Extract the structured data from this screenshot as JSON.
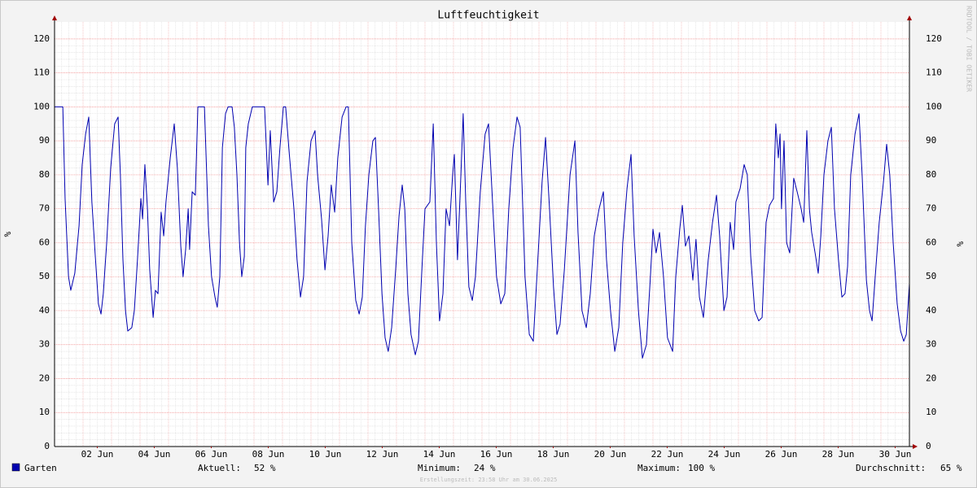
{
  "chart_data": {
    "type": "line",
    "title": "Luftfeuchtigkeit",
    "ylabel": "%",
    "watermark": "RRDTOOL / TOBI OETIKER",
    "xlim": [
      0,
      30
    ],
    "xticks": [
      {
        "value": 1.5,
        "label": "02 Jun"
      },
      {
        "value": 3.5,
        "label": "04 Jun"
      },
      {
        "value": 5.5,
        "label": "06 Jun"
      },
      {
        "value": 7.5,
        "label": "08 Jun"
      },
      {
        "value": 9.5,
        "label": "10 Jun"
      },
      {
        "value": 11.5,
        "label": "12 Jun"
      },
      {
        "value": 13.5,
        "label": "14 Jun"
      },
      {
        "value": 15.5,
        "label": "16 Jun"
      },
      {
        "value": 17.5,
        "label": "18 Jun"
      },
      {
        "value": 19.5,
        "label": "20 Jun"
      },
      {
        "value": 21.5,
        "label": "22 Jun"
      },
      {
        "value": 23.5,
        "label": "24 Jun"
      },
      {
        "value": 25.5,
        "label": "26 Jun"
      },
      {
        "value": 27.5,
        "label": "28 Jun"
      },
      {
        "value": 29.5,
        "label": "30 Jun"
      }
    ],
    "ylim": [
      0,
      125
    ],
    "yticks": [
      0,
      10,
      20,
      30,
      40,
      50,
      60,
      70,
      80,
      90,
      100,
      110,
      120
    ],
    "grid": true,
    "x": [
      0,
      0.29,
      0.37,
      0.49,
      0.57,
      0.71,
      0.86,
      0.97,
      1.09,
      1.2,
      1.31,
      1.43,
      1.54,
      1.63,
      1.71,
      1.83,
      1.97,
      2.11,
      2.23,
      2.31,
      2.4,
      2.49,
      2.57,
      2.71,
      2.8,
      2.91,
      3.03,
      3.09,
      3.17,
      3.26,
      3.34,
      3.46,
      3.54,
      3.63,
      3.74,
      3.83,
      3.91,
      4.06,
      4.2,
      4.31,
      4.43,
      4.51,
      4.6,
      4.69,
      4.74,
      4.83,
      4.94,
      5.03,
      5.26,
      5.4,
      5.51,
      5.63,
      5.71,
      5.8,
      5.89,
      6.0,
      6.09,
      6.23,
      6.31,
      6.4,
      6.49,
      6.57,
      6.66,
      6.71,
      6.8,
      6.94,
      7.37,
      7.49,
      7.57,
      7.69,
      7.8,
      7.91,
      8.03,
      8.11,
      8.23,
      8.4,
      8.51,
      8.63,
      8.74,
      8.86,
      9.0,
      9.14,
      9.23,
      9.37,
      9.49,
      9.6,
      9.71,
      9.83,
      9.94,
      10.09,
      10.23,
      10.31,
      10.43,
      10.57,
      10.69,
      10.8,
      10.91,
      11.03,
      11.17,
      11.26,
      11.37,
      11.49,
      11.6,
      11.71,
      11.83,
      11.97,
      12.09,
      12.2,
      12.29,
      12.4,
      12.51,
      12.66,
      12.77,
      12.89,
      13.0,
      13.17,
      13.29,
      13.4,
      13.51,
      13.63,
      13.74,
      13.86,
      13.97,
      14.03,
      14.14,
      14.26,
      14.34,
      14.43,
      14.54,
      14.66,
      14.77,
      14.94,
      15.11,
      15.23,
      15.37,
      15.51,
      15.66,
      15.8,
      15.94,
      16.09,
      16.23,
      16.34,
      16.51,
      16.66,
      16.8,
      16.94,
      17.11,
      17.23,
      17.37,
      17.51,
      17.63,
      17.74,
      17.89,
      18.09,
      18.26,
      18.37,
      18.51,
      18.66,
      18.8,
      18.94,
      19.11,
      19.26,
      19.37,
      19.51,
      19.66,
      19.8,
      19.94,
      20.09,
      20.23,
      20.34,
      20.49,
      20.63,
      20.77,
      20.91,
      21.0,
      21.11,
      21.23,
      21.37,
      21.51,
      21.69,
      21.8,
      21.94,
      22.03,
      22.14,
      22.26,
      22.4,
      22.51,
      22.63,
      22.77,
      22.94,
      23.09,
      23.23,
      23.34,
      23.49,
      23.6,
      23.71,
      23.83,
      23.91,
      24.06,
      24.2,
      24.31,
      24.43,
      24.57,
      24.71,
      24.83,
      24.97,
      25.09,
      25.23,
      25.31,
      25.4,
      25.46,
      25.51,
      25.6,
      25.69,
      25.8,
      25.94,
      26.06,
      26.2,
      26.29,
      26.4,
      26.49,
      26.57,
      26.69,
      26.8,
      26.89,
      27.0,
      27.14,
      27.26,
      27.37,
      27.51,
      27.63,
      27.74,
      27.83,
      27.94,
      28.09,
      28.23,
      28.34,
      28.49,
      28.6,
      28.69,
      28.8,
      28.94,
      29.09,
      29.2,
      29.31,
      29.43,
      29.57,
      29.69,
      29.8,
      29.89,
      30
    ],
    "series": [
      {
        "name": "Garten",
        "color": "#0000b0",
        "values": [
          100,
          100,
          73,
          50,
          46,
          51,
          65,
          83,
          92,
          97,
          72,
          56,
          42,
          39,
          45,
          60,
          82,
          95,
          97,
          80,
          55,
          40,
          34,
          35,
          40,
          55,
          73,
          67,
          83,
          70,
          52,
          38,
          46,
          45,
          69,
          62,
          72,
          85,
          95,
          82,
          59,
          50,
          58,
          70,
          58,
          75,
          74,
          100,
          100,
          65,
          50,
          44,
          41,
          50,
          88,
          98,
          100,
          100,
          94,
          80,
          60,
          50,
          56,
          88,
          95,
          100,
          100,
          77,
          93,
          72,
          75,
          88,
          100,
          100,
          87,
          70,
          55,
          44,
          50,
          78,
          90,
          93,
          80,
          67,
          52,
          62,
          77,
          69,
          85,
          97,
          100,
          100,
          60,
          43,
          39,
          44,
          65,
          80,
          90,
          91,
          70,
          45,
          32,
          28,
          35,
          52,
          68,
          77,
          70,
          45,
          33,
          27,
          31,
          52,
          70,
          72,
          95,
          60,
          37,
          45,
          70,
          65,
          80,
          86,
          55,
          80,
          98,
          72,
          47,
          43,
          50,
          75,
          92,
          95,
          72,
          50,
          42,
          45,
          70,
          88,
          97,
          94,
          50,
          33,
          31,
          52,
          78,
          91,
          70,
          47,
          33,
          36,
          52,
          80,
          90,
          63,
          40,
          35,
          45,
          62,
          70,
          75,
          55,
          40,
          28,
          35,
          60,
          76,
          86,
          62,
          40,
          26,
          30,
          50,
          64,
          57,
          63,
          50,
          32,
          28,
          50,
          64,
          71,
          59,
          62,
          49,
          61,
          44,
          38,
          55,
          66,
          74,
          62,
          40,
          44,
          66,
          58,
          72,
          76,
          83,
          80,
          56,
          40,
          37,
          38,
          66,
          71,
          73,
          95,
          85,
          92,
          70,
          90,
          60,
          57,
          79,
          75,
          70,
          66,
          93,
          70,
          63,
          57,
          51,
          62,
          80,
          90,
          94,
          70,
          55,
          44,
          45,
          53,
          80,
          92,
          98,
          80,
          49,
          40,
          37,
          50,
          66,
          78,
          89,
          80,
          60,
          42,
          34,
          31,
          33,
          48
        ]
      }
    ],
    "stats": [
      {
        "label": "Aktuell:",
        "value": "52 %"
      },
      {
        "label": "Minimum:",
        "value": "24 %"
      },
      {
        "label": "Maximum:",
        "value": "100 %"
      },
      {
        "label": "Durchschnitt:",
        "value": "65 %"
      }
    ],
    "footer": "Erstellungszeit: 23:58 Uhr am 30.06.2025"
  }
}
